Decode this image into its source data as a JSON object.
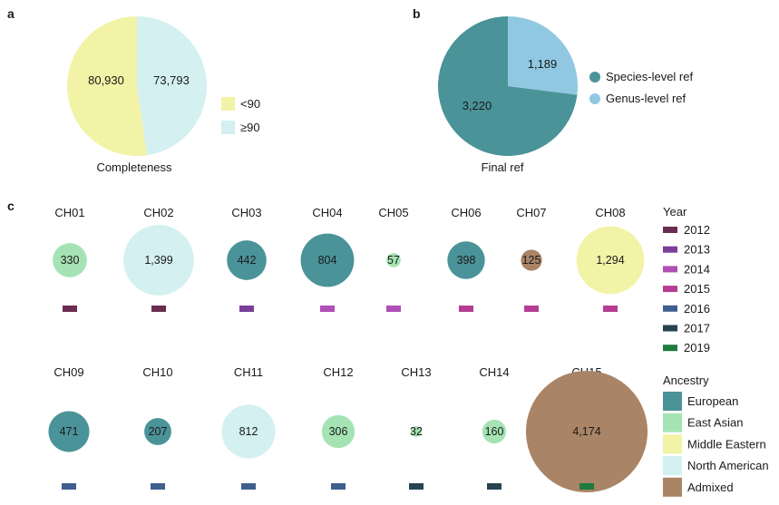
{
  "colors": {
    "lt90": "#f2f3a6",
    "ge90": "#d4f0f0",
    "species": "#4a9399",
    "genus": "#90c8e2",
    "year": {
      "2012": "#6b2c52",
      "2013": "#7b3f98",
      "2014": "#b04fb5",
      "2015": "#b53d93",
      "2016": "#3f5f8f",
      "2017": "#24444f",
      "2019": "#1e7a3e"
    },
    "ancestry": {
      "European": "#4a9399",
      "East Asian": "#a5e3b4",
      "Middle Eastern": "#f2f3a6",
      "North American": "#d4f0f0",
      "Admixed": "#a98466"
    }
  },
  "chart_data": [
    {
      "panel": "a",
      "type": "pie",
      "title": "Completeness",
      "slices": [
        {
          "label": "<90",
          "value": 80930,
          "display": "80,930",
          "color_key": "lt90"
        },
        {
          "label": "≥90",
          "value": 73793,
          "display": "73,793",
          "color_key": "ge90"
        }
      ],
      "legend": [
        "<90",
        "≥90"
      ]
    },
    {
      "panel": "b",
      "type": "pie",
      "title": "Final ref",
      "slices": [
        {
          "label": "Species-level ref",
          "value": 3220,
          "display": "3,220",
          "color_key": "species"
        },
        {
          "label": "Genus-level ref",
          "value": 1189,
          "display": "1,189",
          "color_key": "genus"
        }
      ],
      "legend": [
        "Species-level ref",
        "Genus-level ref"
      ]
    },
    {
      "panel": "c",
      "type": "bubble",
      "samples": [
        {
          "name": "CH01",
          "value": 330,
          "display": "330",
          "year": "2012",
          "ancestry": "East Asian"
        },
        {
          "name": "CH02",
          "value": 1399,
          "display": "1,399",
          "year": "2012",
          "ancestry": "North American"
        },
        {
          "name": "CH03",
          "value": 442,
          "display": "442",
          "year": "2013",
          "ancestry": "European"
        },
        {
          "name": "CH04",
          "value": 804,
          "display": "804",
          "year": "2014",
          "ancestry": "European"
        },
        {
          "name": "CH05",
          "value": 57,
          "display": "57",
          "year": "2014",
          "ancestry": "East Asian"
        },
        {
          "name": "CH06",
          "value": 398,
          "display": "398",
          "year": "2015",
          "ancestry": "European"
        },
        {
          "name": "CH07",
          "value": 125,
          "display": "125",
          "year": "2015",
          "ancestry": "Admixed"
        },
        {
          "name": "CH08",
          "value": 1294,
          "display": "1,294",
          "year": "2015",
          "ancestry": "Middle Eastern"
        },
        {
          "name": "CH09",
          "value": 471,
          "display": "471",
          "year": "2016",
          "ancestry": "European"
        },
        {
          "name": "CH10",
          "value": 207,
          "display": "207",
          "year": "2016",
          "ancestry": "European"
        },
        {
          "name": "CH11",
          "value": 812,
          "display": "812",
          "year": "2016",
          "ancestry": "North American"
        },
        {
          "name": "CH12",
          "value": 306,
          "display": "306",
          "year": "2016",
          "ancestry": "East Asian"
        },
        {
          "name": "CH13",
          "value": 32,
          "display": "32",
          "year": "2017",
          "ancestry": "East Asian"
        },
        {
          "name": "CH14",
          "value": 160,
          "display": "160",
          "year": "2017",
          "ancestry": "East Asian"
        },
        {
          "name": "CH15",
          "value": 4174,
          "display": "4,174",
          "year": "2019",
          "ancestry": "Admixed"
        }
      ],
      "year_legend": {
        "title": "Year",
        "items": [
          "2012",
          "2013",
          "2014",
          "2015",
          "2016",
          "2017",
          "2019"
        ]
      },
      "ancestry_legend": {
        "title": "Ancestry",
        "items": [
          "European",
          "East Asian",
          "Middle Eastern",
          "North American",
          "Admixed"
        ]
      }
    }
  ],
  "panel_labels": [
    "a",
    "b",
    "c"
  ]
}
